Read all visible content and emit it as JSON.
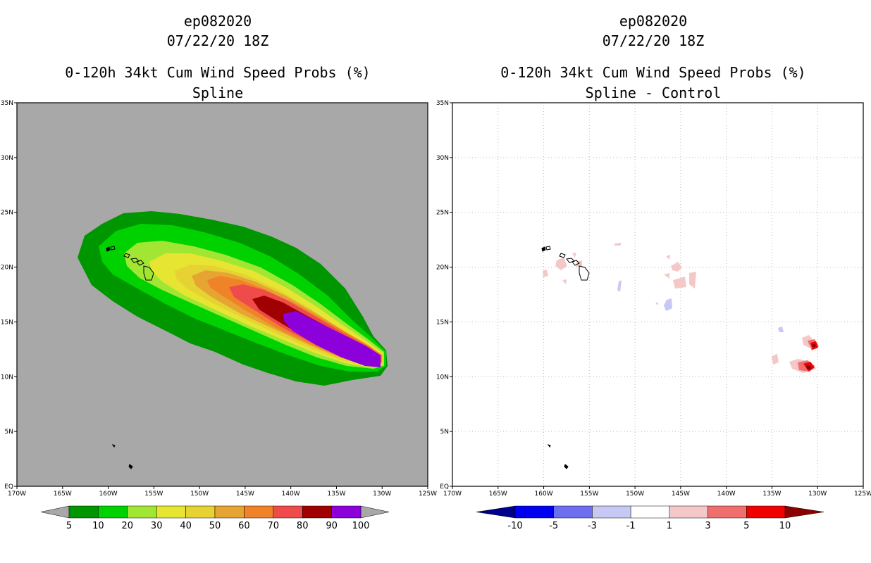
{
  "left_panel": {
    "storm_id": "ep082020",
    "datetime": "07/22/20 18Z",
    "product": "0-120h 34kt Cum Wind Speed Probs (%)",
    "subtitle": "Spline",
    "background_color": "#a8a8a8",
    "colorbar": {
      "labels": [
        "5",
        "10",
        "20",
        "30",
        "40",
        "50",
        "60",
        "70",
        "80",
        "90",
        "100"
      ],
      "colors": [
        "#009600",
        "#00d200",
        "#a0e632",
        "#e6e632",
        "#e6d232",
        "#e6a532",
        "#f08228",
        "#f04b4b",
        "#a00000",
        "#8c00dc"
      ]
    }
  },
  "right_panel": {
    "storm_id": "ep082020",
    "datetime": "07/22/20 18Z",
    "product": "0-120h 34kt Cum Wind Speed Probs (%)",
    "subtitle": "Spline - Control",
    "background_color": "#ffffff",
    "colorbar": {
      "labels": [
        "-10",
        "-5",
        "-3",
        "-1",
        "1",
        "3",
        "5",
        "10"
      ],
      "colors": [
        "#00008c",
        "#0000f0",
        "#6e6ef0",
        "#c8c8f5",
        "#ffffff",
        "#f5c8c8",
        "#f06e6e",
        "#f00000",
        "#8c0000"
      ]
    }
  },
  "axes": {
    "lon_labels": [
      "170W",
      "165W",
      "160W",
      "155W",
      "150W",
      "145W",
      "140W",
      "135W",
      "130W",
      "125W"
    ],
    "lat_labels": [
      "EQ",
      "5N",
      "10N",
      "15N",
      "20N",
      "25N",
      "30N",
      "35N"
    ]
  }
}
